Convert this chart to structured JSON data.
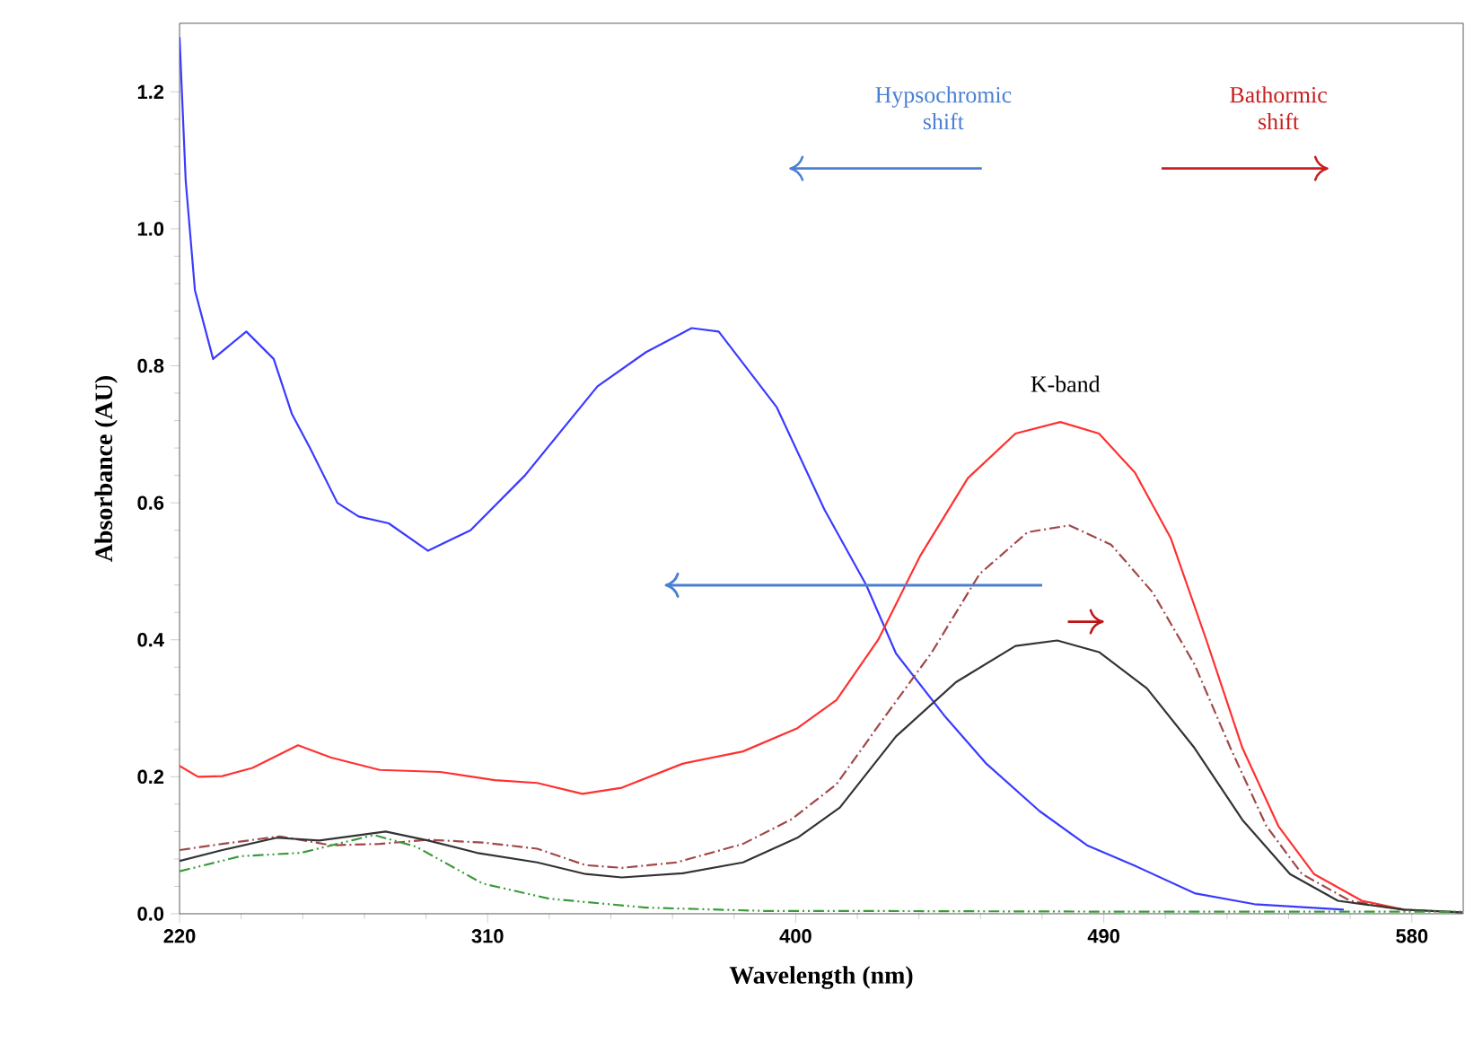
{
  "chart_data": {
    "type": "line",
    "xlabel": "Wavelength (nm)",
    "ylabel": "Absorbance (AU)",
    "xlim": [
      220,
      595
    ],
    "ylim": [
      0,
      1.3
    ],
    "xticks": [
      220,
      310,
      400,
      490,
      580
    ],
    "yticks": [
      {
        "value": 0,
        "label": "0.0"
      },
      {
        "value": 0.2,
        "label": "0.2"
      },
      {
        "value": 0.4,
        "label": "0.4"
      },
      {
        "value": 0.6,
        "label": "0.6"
      },
      {
        "value": 0.8,
        "label": "0.8"
      },
      {
        "value": 1.0,
        "label": "1.0"
      },
      {
        "value": 1.2,
        "label": "1.2"
      }
    ],
    "annotations": [
      "Hypsochromic shift",
      "Bathormic shift",
      "K-band"
    ],
    "series": [
      {
        "color": "#3a3aff",
        "line_style": "solid",
        "x": [
          220,
          221.8,
          224.5,
          229.8,
          239.5,
          247.5,
          252.8,
          258.1,
          266.1,
          272.3,
          281.1,
          292.6,
          305,
          320.9,
          342.1,
          356.3,
          369.6,
          377.5,
          394.4,
          408.4,
          420.6,
          429.3,
          443.3,
          455.5,
          471.2,
          485.1,
          499.1,
          516.5,
          534,
          560.1
        ],
        "values": [
          1.28,
          1.07,
          0.91,
          0.81,
          0.85,
          0.81,
          0.73,
          0.68,
          0.6,
          0.58,
          0.57,
          0.53,
          0.56,
          0.64,
          0.77,
          0.82,
          0.855,
          0.85,
          0.74,
          0.59,
          0.48,
          0.38,
          0.29,
          0.22,
          0.15,
          0.1,
          0.07,
          0.03,
          0.014,
          0.006
        ]
      },
      {
        "color": "#ff3030",
        "line_style": "solid",
        "x": [
          220,
          225.4,
          232.5,
          241.3,
          254.6,
          264.3,
          278.5,
          296.2,
          312.1,
          324.5,
          337.7,
          349.2,
          366.9,
          384.6,
          400.5,
          411.9,
          424.1,
          436.3,
          450.3,
          464.2,
          477.3,
          488.6,
          499.1,
          509.6,
          520,
          530.5,
          541,
          551.4,
          565.4,
          577.6
        ],
        "values": [
          0.216,
          0.2,
          0.201,
          0.213,
          0.246,
          0.228,
          0.21,
          0.207,
          0.195,
          0.191,
          0.175,
          0.184,
          0.219,
          0.237,
          0.271,
          0.312,
          0.4,
          0.522,
          0.636,
          0.701,
          0.718,
          0.701,
          0.644,
          0.548,
          0.399,
          0.242,
          0.128,
          0.058,
          0.019,
          0.006
        ]
      },
      {
        "color": "#a04848",
        "line_style": "dashdot",
        "x": [
          220,
          232.5,
          249.3,
          264.3,
          278.5,
          292.6,
          308.6,
          324.5,
          338.6,
          349.2,
          365.2,
          384.6,
          398.8,
          411.9,
          425.8,
          439.8,
          453.7,
          467.7,
          479.9,
          492.1,
          504.3,
          516.5,
          527,
          537.5,
          547.9,
          561.9,
          577.6,
          594.7
        ],
        "values": [
          0.093,
          0.102,
          0.113,
          0.1,
          0.102,
          0.108,
          0.104,
          0.095,
          0.071,
          0.067,
          0.075,
          0.102,
          0.138,
          0.189,
          0.286,
          0.382,
          0.496,
          0.557,
          0.567,
          0.539,
          0.469,
          0.364,
          0.242,
          0.128,
          0.058,
          0.019,
          0.006,
          0.002
        ]
      },
      {
        "color": "#333333",
        "line_style": "solid",
        "x": [
          220,
          232.5,
          248.4,
          260.8,
          280.2,
          292.6,
          306.8,
          324.5,
          338.6,
          349.2,
          366.9,
          384.6,
          400.5,
          412.9,
          429.3,
          446.8,
          464.2,
          476.4,
          488.6,
          502.6,
          516.5,
          530.5,
          544.4,
          558.4,
          577.6,
          594.7
        ],
        "values": [
          0.077,
          0.093,
          0.111,
          0.107,
          0.12,
          0.107,
          0.089,
          0.075,
          0.058,
          0.053,
          0.059,
          0.075,
          0.111,
          0.155,
          0.259,
          0.338,
          0.391,
          0.399,
          0.382,
          0.329,
          0.242,
          0.137,
          0.058,
          0.019,
          0.006,
          0.002
        ]
      },
      {
        "color": "#3a9a3a",
        "line_style": "dashdotdot",
        "x": [
          220,
          237.8,
          255.5,
          266.1,
          276.8,
          289.1,
          308.6,
          328,
          356.3,
          391.7,
          424.1,
          500,
          594.7
        ],
        "values": [
          0.062,
          0.084,
          0.089,
          0.102,
          0.115,
          0.098,
          0.044,
          0.022,
          0.009,
          0.004,
          0.004,
          0.003,
          0.003
        ]
      }
    ]
  }
}
